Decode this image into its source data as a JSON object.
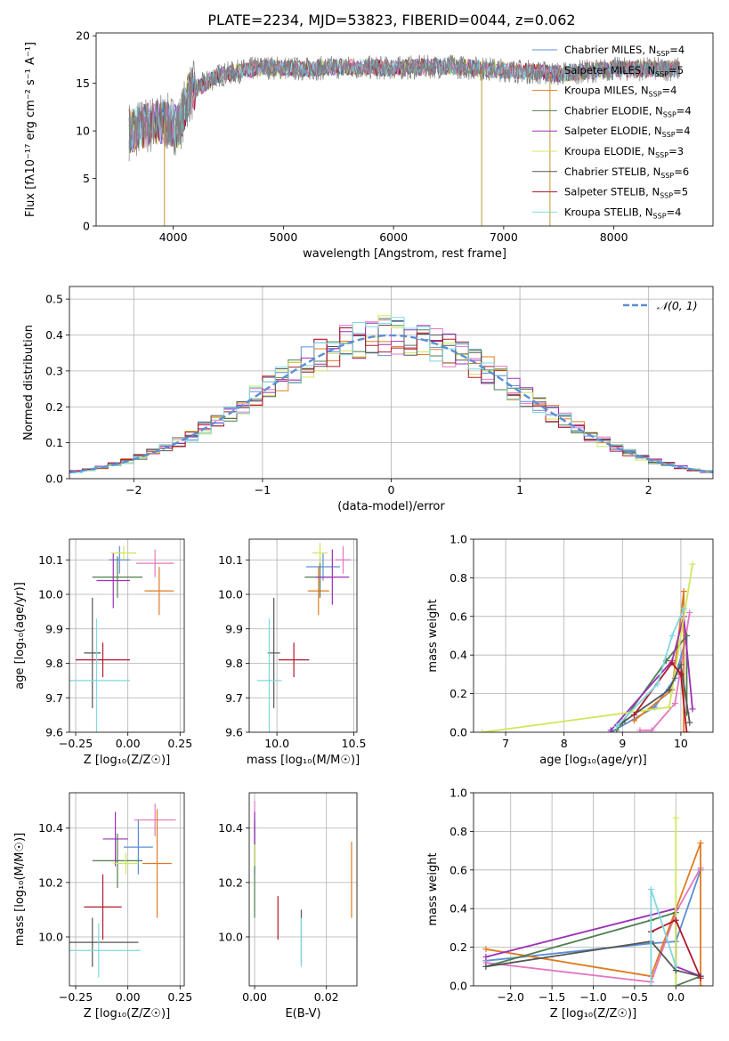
{
  "figure": {
    "title": "PLATE=2234, MJD=53823, FIBERID=0044, z=0.062",
    "panels": [
      {
        "id": "spectrum",
        "xlabel": "wavelength [Angstrom, rest frame]",
        "ylabel": "Flux [fλ10⁻¹⁷ erg cm⁻² s⁻¹ A⁻¹]",
        "xlim": [
          3300,
          8900
        ],
        "ylim": [
          0,
          20.3
        ],
        "xticks": [
          "4000",
          "5000",
          "6000",
          "7000",
          "8000"
        ],
        "yticks": [
          "0",
          "5",
          "10",
          "15",
          "20"
        ],
        "grid": false
      },
      {
        "id": "residuals",
        "xlabel": "(data-model)/error",
        "ylabel": "Normed distribution",
        "xlim": [
          -2.5,
          2.5
        ],
        "ylim": [
          0,
          0.535
        ],
        "xticks": [
          "−2",
          "−1",
          "0",
          "1",
          "2"
        ],
        "yticks": [
          "0.0",
          "0.1",
          "0.2",
          "0.3",
          "0.4",
          "0.5"
        ],
        "legend": "𝒩(0, 1)",
        "grid": true
      },
      {
        "id": "age_vs_Z",
        "xlabel": "Z [log₁₀(Z/Z☉)]",
        "ylabel": "age  [log₁₀(age/yr)]",
        "xlim": [
          -0.28,
          0.27
        ],
        "ylim": [
          9.6,
          10.16
        ],
        "xticks": [
          "−0.25",
          "0.00",
          "0.25"
        ],
        "yticks": [
          "9.6",
          "9.7",
          "9.8",
          "9.9",
          "10.0",
          "10.1"
        ],
        "grid": true
      },
      {
        "id": "age_vs_mass",
        "xlabel": "mass [log₁₀(M/M☉)]",
        "ylabel": "",
        "xlim": [
          9.82,
          10.52
        ],
        "ylim": [
          9.6,
          10.16
        ],
        "xticks": [
          "10.0",
          "10.5"
        ],
        "yticks": [
          "9.6",
          "9.7",
          "9.8",
          "9.9",
          "10.0",
          "10.1"
        ],
        "grid": true
      },
      {
        "id": "weight_vs_age",
        "xlabel": "age  [log₁₀(age/yr)]",
        "ylabel": "mass weight",
        "xlim": [
          6.45,
          10.55
        ],
        "ylim": [
          0,
          1
        ],
        "xticks": [
          "7",
          "8",
          "9",
          "10"
        ],
        "yticks": [
          "0.0",
          "0.2",
          "0.4",
          "0.6",
          "0.8",
          "1.0"
        ],
        "grid": true
      },
      {
        "id": "mass_vs_Z",
        "xlabel": "Z [log₁₀(Z/Z☉)]",
        "ylabel": "mass [log₁₀(M/M☉)]",
        "xlim": [
          -0.28,
          0.27
        ],
        "ylim": [
          9.82,
          10.53
        ],
        "xticks": [
          "−0.25",
          "0.00",
          "0.25"
        ],
        "yticks": [
          "10.0",
          "10.2",
          "10.4"
        ],
        "grid": true
      },
      {
        "id": "mass_vs_EBV",
        "xlabel": "E(B-V)",
        "ylabel": "",
        "xlim": [
          -0.0015,
          0.0285
        ],
        "ylim": [
          9.82,
          10.53
        ],
        "xticks": [
          "0.00",
          "0.02"
        ],
        "yticks": [
          "10.0",
          "10.2",
          "10.4"
        ],
        "grid": true
      },
      {
        "id": "weight_vs_Z",
        "xlabel": "Z [log₁₀(Z/Z☉)]",
        "ylabel": "mass weight",
        "xlim": [
          -2.45,
          0.45
        ],
        "ylim": [
          0,
          1
        ],
        "xticks": [
          "−2.0",
          "−1.5",
          "−1.0",
          "−0.5",
          "0.0"
        ],
        "yticks": [
          "0.0",
          "0.2",
          "0.4",
          "0.6",
          "0.8",
          "1.0"
        ],
        "grid": true
      }
    ]
  },
  "legend": [
    {
      "label": "Chabrier MILES, N",
      "sub": "SSP",
      "tail": "=4",
      "color": "#5b8fd6"
    },
    {
      "label": "Salpeter MILES, N",
      "sub": "SSP",
      "tail": "=5",
      "color": "#e377c2"
    },
    {
      "label": "Kroupa MILES, N",
      "sub": "SSP",
      "tail": "=4",
      "color": "#e07b22"
    },
    {
      "label": "Chabrier ELODIE, N",
      "sub": "SSP",
      "tail": "=4",
      "color": "#4f7f4f"
    },
    {
      "label": "Salpeter ELODIE, N",
      "sub": "SSP",
      "tail": "=4",
      "color": "#9b30b8"
    },
    {
      "label": "Kroupa ELODIE, N",
      "sub": "SSP",
      "tail": "=3",
      "color": "#cde85a"
    },
    {
      "label": "Chabrier STELIB, N",
      "sub": "SSP",
      "tail": "=6",
      "color": "#555555"
    },
    {
      "label": "Salpeter STELIB, N",
      "sub": "SSP",
      "tail": "=5",
      "color": "#b2182b"
    },
    {
      "label": "Kroupa STELIB, N",
      "sub": "SSP",
      "tail": "=4",
      "color": "#7fd8e0"
    }
  ],
  "chart_data": [
    {
      "type": "line",
      "panel": "spectrum",
      "title": "PLATE=2234, MJD=53823, FIBERID=0044, z=0.062",
      "description_free": true,
      "x_range": [
        3600,
        8600
      ],
      "continuum": [
        [
          3600,
          10
        ],
        [
          3900,
          11
        ],
        [
          4050,
          10.5
        ],
        [
          4150,
          14
        ],
        [
          4400,
          15.8
        ],
        [
          4800,
          16.7
        ],
        [
          5200,
          16.5
        ],
        [
          5500,
          16.7
        ],
        [
          6000,
          16.6
        ],
        [
          6500,
          16.8
        ],
        [
          7000,
          16.4
        ],
        [
          7500,
          16
        ],
        [
          8000,
          16.5
        ],
        [
          8600,
          16.5
        ]
      ],
      "data_gaps": [
        [
          3920,
          0
        ],
        [
          6800,
          0
        ],
        [
          7420,
          0
        ]
      ]
    },
    {
      "type": "histogram",
      "panel": "residuals",
      "bin_edges_start": -2.5,
      "bin_width": 0.1,
      "gaussian": {
        "mu": 0,
        "sigma": 1,
        "legend": "𝒩(0, 1)"
      }
    },
    {
      "type": "scatter",
      "panel": "age_vs_Z",
      "points": [
        {
          "x": -0.04,
          "y": 10.1,
          "xerr": 0.05,
          "yerr": 0.04,
          "c": "#5b8fd6"
        },
        {
          "x": 0.13,
          "y": 10.09,
          "xerr": 0.09,
          "yerr": 0.04,
          "c": "#e377c2"
        },
        {
          "x": 0.15,
          "y": 10.01,
          "xerr": 0.07,
          "yerr": 0.07,
          "c": "#e07b22"
        },
        {
          "x": -0.05,
          "y": 10.05,
          "xerr": 0.12,
          "yerr": 0.06,
          "c": "#4f7f4f"
        },
        {
          "x": -0.07,
          "y": 10.04,
          "xerr": 0.08,
          "yerr": 0.08,
          "c": "#9b30b8"
        },
        {
          "x": -0.02,
          "y": 10.12,
          "xerr": 0.06,
          "yerr": 0.02,
          "c": "#cde85a"
        },
        {
          "x": -0.17,
          "y": 9.83,
          "xerr": 0.04,
          "yerr": 0.16,
          "c": "#555555"
        },
        {
          "x": -0.12,
          "y": 9.81,
          "xerr": 0.13,
          "yerr": 0.05,
          "c": "#b2182b"
        },
        {
          "x": -0.15,
          "y": 9.75,
          "xerr": 0.16,
          "yerr": 0.18,
          "c": "#7fd8e0"
        }
      ]
    },
    {
      "type": "scatter",
      "panel": "age_vs_mass",
      "points": [
        {
          "x": 10.3,
          "y": 10.08,
          "xerr": 0.11,
          "yerr": 0.04,
          "c": "#5b8fd6"
        },
        {
          "x": 10.43,
          "y": 10.1,
          "xerr": 0.05,
          "yerr": 0.04,
          "c": "#e377c2"
        },
        {
          "x": 10.27,
          "y": 10.01,
          "xerr": 0.07,
          "yerr": 0.07,
          "c": "#e07b22"
        },
        {
          "x": 10.28,
          "y": 10.05,
          "xerr": 0.1,
          "yerr": 0.06,
          "c": "#4f7f4f"
        },
        {
          "x": 10.36,
          "y": 10.05,
          "xerr": 0.11,
          "yerr": 0.08,
          "c": "#9b30b8"
        },
        {
          "x": 10.28,
          "y": 10.12,
          "xerr": 0.05,
          "yerr": 0.03,
          "c": "#cde85a"
        },
        {
          "x": 9.98,
          "y": 9.83,
          "xerr": 0.04,
          "yerr": 0.16,
          "c": "#555555"
        },
        {
          "x": 10.11,
          "y": 9.81,
          "xerr": 0.1,
          "yerr": 0.05,
          "c": "#b2182b"
        },
        {
          "x": 9.95,
          "y": 9.75,
          "xerr": 0.08,
          "yerr": 0.18,
          "c": "#7fd8e0"
        }
      ]
    },
    {
      "type": "line",
      "panel": "weight_vs_age",
      "series": [
        {
          "c": "#5b8fd6",
          "x": [
            8.8,
            9.55,
            9.9,
            10.1
          ],
          "y": [
            0.0,
            0.13,
            0.28,
            0.5
          ]
        },
        {
          "c": "#e377c2",
          "x": [
            9.3,
            9.5,
            9.9,
            10.15
          ],
          "y": [
            0.01,
            0.01,
            0.15,
            0.62
          ]
        },
        {
          "c": "#e07b22",
          "x": [
            9.2,
            9.85,
            10.05,
            10.05
          ],
          "y": [
            0.06,
            0.22,
            0.73,
            0.0
          ]
        },
        {
          "c": "#4f7f4f",
          "x": [
            8.9,
            9.75,
            10.1,
            10.1
          ],
          "y": [
            0.01,
            0.37,
            0.5,
            0.1
          ]
        },
        {
          "c": "#9b30b8",
          "x": [
            8.8,
            9.85,
            10.05,
            10.2
          ],
          "y": [
            0.01,
            0.37,
            0.6,
            0.12
          ]
        },
        {
          "c": "#cde85a",
          "x": [
            6.6,
            9.8,
            10.2
          ],
          "y": [
            0.0,
            0.13,
            0.87
          ]
        },
        {
          "c": "#555555",
          "x": [
            9.0,
            9.8,
            10.0,
            10.15
          ],
          "y": [
            0.05,
            0.22,
            0.35,
            0.05
          ]
        },
        {
          "c": "#b2182b",
          "x": [
            9.2,
            9.85,
            10.0,
            10.1
          ],
          "y": [
            0.09,
            0.36,
            0.3,
            0.0
          ]
        },
        {
          "c": "#7fd8e0",
          "x": [
            8.9,
            9.6,
            9.85,
            10.05
          ],
          "y": [
            0.03,
            0.25,
            0.5,
            0.64
          ]
        }
      ]
    },
    {
      "type": "scatter",
      "panel": "mass_vs_Z",
      "points": [
        {
          "x": 0.05,
          "y": 10.33,
          "xerr": 0.07,
          "yerr": 0.1,
          "c": "#5b8fd6"
        },
        {
          "x": 0.13,
          "y": 10.43,
          "xerr": 0.1,
          "yerr": 0.06,
          "c": "#e377c2"
        },
        {
          "x": 0.14,
          "y": 10.27,
          "xerr": 0.07,
          "yerr": 0.2,
          "c": "#e07b22"
        },
        {
          "x": -0.05,
          "y": 10.28,
          "xerr": 0.12,
          "yerr": 0.1,
          "c": "#4f7f4f"
        },
        {
          "x": -0.06,
          "y": 10.36,
          "xerr": 0.06,
          "yerr": 0.1,
          "c": "#9b30b8"
        },
        {
          "x": -0.01,
          "y": 10.27,
          "xerr": 0.06,
          "yerr": 0.04,
          "c": "#cde85a"
        },
        {
          "x": -0.17,
          "y": 9.98,
          "xerr": 0.22,
          "yerr": 0.09,
          "c": "#555555"
        },
        {
          "x": -0.12,
          "y": 10.11,
          "xerr": 0.09,
          "yerr": 0.12,
          "c": "#b2182b"
        },
        {
          "x": -0.14,
          "y": 9.95,
          "xerr": 0.2,
          "yerr": 0.1,
          "c": "#7fd8e0"
        }
      ]
    },
    {
      "type": "scatter",
      "panel": "mass_vs_EBV",
      "points": [
        {
          "x": 0.0,
          "y": 10.33,
          "xerr": 0,
          "yerr": 0.1,
          "c": "#5b8fd6"
        },
        {
          "x": 0.0,
          "y": 10.43,
          "xerr": 0,
          "yerr": 0.07,
          "c": "#e377c2"
        },
        {
          "x": 0.027,
          "y": 10.21,
          "xerr": 0,
          "yerr": 0.14,
          "c": "#e07b22"
        },
        {
          "x": 0.0,
          "y": 10.25,
          "xerr": 0,
          "yerr": 0.18,
          "c": "#4f7f4f"
        },
        {
          "x": 0.0,
          "y": 10.36,
          "xerr": 0,
          "yerr": 0.1,
          "c": "#9b30b8"
        },
        {
          "x": 0.0,
          "y": 10.3,
          "xerr": 0,
          "yerr": 0.04,
          "c": "#cde85a"
        },
        {
          "x": 0.013,
          "y": 10.0,
          "xerr": 0,
          "yerr": 0.1,
          "c": "#555555"
        },
        {
          "x": 0.0065,
          "y": 10.07,
          "xerr": 0,
          "yerr": 0.08,
          "c": "#b2182b"
        },
        {
          "x": 0.013,
          "y": 9.98,
          "xerr": 0,
          "yerr": 0.09,
          "c": "#7fd8e0"
        }
      ]
    },
    {
      "type": "line",
      "panel": "weight_vs_Z",
      "series": [
        {
          "c": "#5b8fd6",
          "x": [
            -2.3,
            -0.3,
            -0.0,
            0.3
          ],
          "y": [
            0.13,
            0.22,
            0.23,
            0.6
          ]
        },
        {
          "c": "#e377c2",
          "x": [
            -2.3,
            -0.3,
            0.0,
            0.3
          ],
          "y": [
            0.12,
            0.02,
            0.38,
            0.61
          ]
        },
        {
          "c": "#e07b22",
          "x": [
            -2.3,
            -0.3,
            0.3,
            0.3
          ],
          "y": [
            0.19,
            0.05,
            0.74,
            0.0
          ]
        },
        {
          "c": "#4f7f4f",
          "x": [
            -2.3,
            -0.3,
            0.0,
            0.0,
            0.3
          ],
          "y": [
            0.1,
            0.34,
            0.38,
            0.0,
            0.05
          ]
        },
        {
          "c": "#9b30b8",
          "x": [
            -2.3,
            0.0,
            0.0,
            0.3
          ],
          "y": [
            0.15,
            0.4,
            0.1,
            0.05
          ]
        },
        {
          "c": "#cde85a",
          "x": [
            -0.0,
            -0.0
          ],
          "y": [
            0.0,
            0.87
          ]
        },
        {
          "c": "#555555",
          "x": [
            -2.3,
            -0.3,
            0.0,
            0.3
          ],
          "y": [
            0.1,
            0.23,
            0.08,
            0.05
          ]
        },
        {
          "c": "#b2182b",
          "x": [
            -0.3,
            0.0,
            0.3
          ],
          "y": [
            0.28,
            0.34,
            0.04
          ]
        },
        {
          "c": "#7fd8e0",
          "x": [
            -0.3,
            -0.3,
            0.0
          ],
          "y": [
            0.0,
            0.5,
            0.1
          ]
        }
      ]
    }
  ]
}
